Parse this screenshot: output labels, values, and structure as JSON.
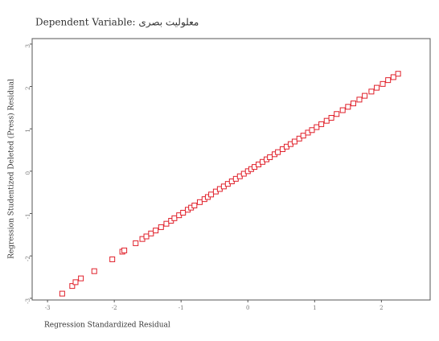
{
  "chart_data": {
    "type": "scatter",
    "title": "Dependent Variable: معلولیت بصری",
    "x_label": "Regression Standardized Residual",
    "y_label": "Regression Studentized Deleted (Press) Residual",
    "color": "#e0202a",
    "xlim": [
      -3.23,
      2.73
    ],
    "ylim": [
      -3.04,
      3.13
    ],
    "xticks": [
      -3,
      -2,
      -1,
      0,
      1,
      2
    ],
    "yticks": [
      -3,
      -2,
      -1,
      0,
      1,
      2,
      3
    ],
    "x": [
      -2.78,
      -2.63,
      -2.58,
      -2.5,
      -2.3,
      -2.03,
      -1.88,
      -1.85,
      -1.68,
      -1.58,
      -1.52,
      -1.45,
      -1.38,
      -1.3,
      -1.22,
      -1.15,
      -1.1,
      -1.03,
      -0.97,
      -0.9,
      -0.85,
      -0.8,
      -0.72,
      -0.65,
      -0.6,
      -0.55,
      -0.48,
      -0.42,
      -0.36,
      -0.3,
      -0.24,
      -0.18,
      -0.12,
      -0.06,
      0,
      0.05,
      0.1,
      0.16,
      0.22,
      0.28,
      0.33,
      0.4,
      0.45,
      0.52,
      0.58,
      0.64,
      0.7,
      0.77,
      0.83,
      0.9,
      0.96,
      1.03,
      1.1,
      1.18,
      1.25,
      1.33,
      1.42,
      1.5,
      1.58,
      1.67,
      1.75,
      1.85,
      1.93,
      2.02,
      2.1,
      2.18,
      2.25
    ],
    "y": [
      -2.89,
      -2.71,
      -2.62,
      -2.53,
      -2.36,
      -2.08,
      -1.9,
      -1.87,
      -1.7,
      -1.6,
      -1.54,
      -1.47,
      -1.4,
      -1.32,
      -1.24,
      -1.17,
      -1.11,
      -1.04,
      -0.98,
      -0.91,
      -0.86,
      -0.81,
      -0.73,
      -0.66,
      -0.61,
      -0.55,
      -0.48,
      -0.42,
      -0.36,
      -0.3,
      -0.24,
      -0.18,
      -0.12,
      -0.06,
      0,
      0.05,
      0.1,
      0.16,
      0.22,
      0.28,
      0.33,
      0.4,
      0.45,
      0.52,
      0.58,
      0.64,
      0.7,
      0.77,
      0.84,
      0.91,
      0.97,
      1.04,
      1.11,
      1.19,
      1.26,
      1.35,
      1.44,
      1.52,
      1.6,
      1.69,
      1.78,
      1.88,
      1.97,
      2.06,
      2.15,
      2.22,
      2.3
    ]
  }
}
